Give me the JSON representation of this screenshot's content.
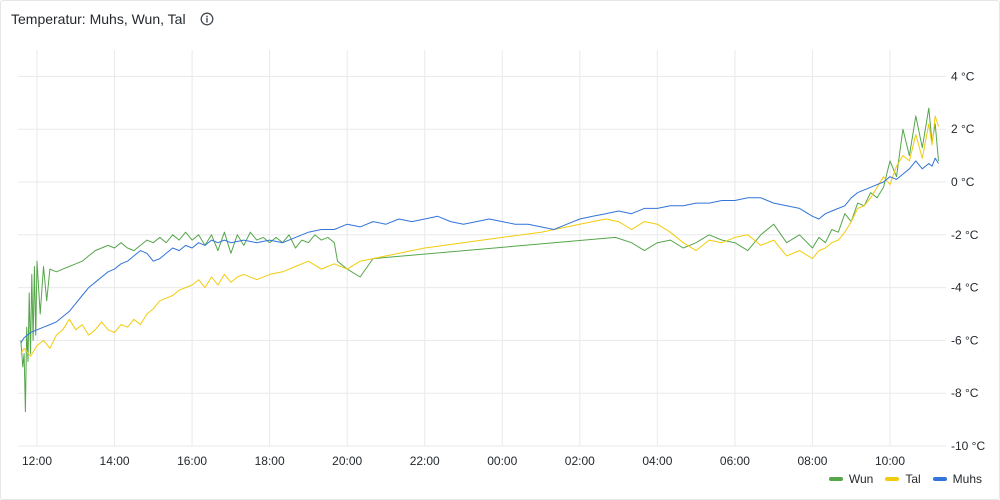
{
  "panel": {
    "title": "Temperatur: Muhs, Wun, Tal",
    "info_icon": "info-circle-icon"
  },
  "chart_data": {
    "type": "line",
    "title": "Temperatur: Muhs, Wun, Tal",
    "xlabel": "",
    "ylabel": "",
    "x_unit": "hours since 12:00 shown on time axis",
    "x_ticks": [
      "12:00",
      "14:00",
      "16:00",
      "18:00",
      "20:00",
      "22:00",
      "00:00",
      "02:00",
      "04:00",
      "06:00",
      "08:00",
      "10:00"
    ],
    "y_ticks": [
      "4 °C",
      "2 °C",
      "0 °C",
      "-2 °C",
      "-4 °C",
      "-6 °C",
      "-8 °C",
      "-10 °C"
    ],
    "ylim": [
      -10,
      5
    ],
    "grid": true,
    "legend_position": "bottom-right",
    "series": [
      {
        "name": "Wun",
        "color": "#56a64b",
        "points": [
          [
            "11:35",
            -6.0
          ],
          [
            "11:38",
            -7.0
          ],
          [
            "11:40",
            -6.5
          ],
          [
            "11:42",
            -8.7
          ],
          [
            "11:44",
            -5.5
          ],
          [
            "11:46",
            -6.8
          ],
          [
            "11:48",
            -4.2
          ],
          [
            "11:50",
            -6.5
          ],
          [
            "11:52",
            -3.5
          ],
          [
            "11:54",
            -6.0
          ],
          [
            "11:56",
            -3.2
          ],
          [
            "11:58",
            -5.8
          ],
          [
            "12:00",
            -3.0
          ],
          [
            "12:05",
            -5.0
          ],
          [
            "12:10",
            -3.2
          ],
          [
            "12:15",
            -4.5
          ],
          [
            "12:20",
            -3.3
          ],
          [
            "12:30",
            -3.4
          ],
          [
            "12:40",
            -3.3
          ],
          [
            "12:50",
            -3.2
          ],
          [
            "13:00",
            -3.1
          ],
          [
            "13:10",
            -3.0
          ],
          [
            "13:20",
            -2.8
          ],
          [
            "13:30",
            -2.6
          ],
          [
            "13:40",
            -2.5
          ],
          [
            "13:50",
            -2.4
          ],
          [
            "14:00",
            -2.5
          ],
          [
            "14:10",
            -2.3
          ],
          [
            "14:20",
            -2.5
          ],
          [
            "14:30",
            -2.6
          ],
          [
            "14:40",
            -2.4
          ],
          [
            "14:50",
            -2.2
          ],
          [
            "15:00",
            -2.3
          ],
          [
            "15:10",
            -2.1
          ],
          [
            "15:20",
            -2.3
          ],
          [
            "15:30",
            -2.0
          ],
          [
            "15:40",
            -2.2
          ],
          [
            "15:50",
            -1.9
          ],
          [
            "16:00",
            -2.2
          ],
          [
            "16:10",
            -2.0
          ],
          [
            "16:20",
            -2.4
          ],
          [
            "16:30",
            -2.0
          ],
          [
            "16:40",
            -2.6
          ],
          [
            "16:50",
            -1.9
          ],
          [
            "17:00",
            -2.7
          ],
          [
            "17:10",
            -2.0
          ],
          [
            "17:20",
            -2.4
          ],
          [
            "17:30",
            -1.9
          ],
          [
            "17:40",
            -2.2
          ],
          [
            "17:50",
            -2.1
          ],
          [
            "18:00",
            -2.3
          ],
          [
            "18:10",
            -2.1
          ],
          [
            "18:20",
            -2.3
          ],
          [
            "18:30",
            -2.0
          ],
          [
            "18:40",
            -2.5
          ],
          [
            "18:50",
            -2.2
          ],
          [
            "19:00",
            -2.3
          ],
          [
            "19:10",
            -2.0
          ],
          [
            "19:20",
            -2.2
          ],
          [
            "19:30",
            -2.1
          ],
          [
            "19:40",
            -2.3
          ],
          [
            "19:45",
            -3.0
          ],
          [
            "20:00",
            -3.3
          ],
          [
            "20:20",
            -3.6
          ],
          [
            "20:40",
            -2.9
          ],
          [
            "02:55",
            -2.1
          ],
          [
            "03:20",
            -2.3
          ],
          [
            "03:40",
            -2.6
          ],
          [
            "04:00",
            -2.3
          ],
          [
            "04:20",
            -2.2
          ],
          [
            "04:40",
            -2.5
          ],
          [
            "05:00",
            -2.3
          ],
          [
            "05:20",
            -2.0
          ],
          [
            "05:40",
            -2.2
          ],
          [
            "06:00",
            -2.3
          ],
          [
            "06:20",
            -2.6
          ],
          [
            "06:40",
            -2.0
          ],
          [
            "07:00",
            -1.6
          ],
          [
            "07:20",
            -2.3
          ],
          [
            "07:40",
            -2.0
          ],
          [
            "08:00",
            -2.5
          ],
          [
            "08:10",
            -2.1
          ],
          [
            "08:20",
            -2.3
          ],
          [
            "08:30",
            -1.8
          ],
          [
            "08:40",
            -1.9
          ],
          [
            "08:50",
            -1.2
          ],
          [
            "09:00",
            -1.5
          ],
          [
            "09:10",
            -0.8
          ],
          [
            "09:20",
            -0.9
          ],
          [
            "09:30",
            -0.4
          ],
          [
            "09:40",
            -0.6
          ],
          [
            "09:50",
            -0.2
          ],
          [
            "10:00",
            0.8
          ],
          [
            "10:10",
            0.2
          ],
          [
            "10:20",
            2.0
          ],
          [
            "10:30",
            1.0
          ],
          [
            "10:40",
            2.5
          ],
          [
            "10:50",
            1.3
          ],
          [
            "11:00",
            2.8
          ],
          [
            "11:05",
            1.5
          ],
          [
            "11:10",
            2.2
          ],
          [
            "11:15",
            0.8
          ]
        ]
      },
      {
        "name": "Tal",
        "color": "#f2cc0c",
        "points": [
          [
            "11:35",
            -6.5
          ],
          [
            "11:40",
            -6.3
          ],
          [
            "11:50",
            -6.6
          ],
          [
            "12:00",
            -6.2
          ],
          [
            "12:10",
            -6.0
          ],
          [
            "12:20",
            -6.3
          ],
          [
            "12:30",
            -5.8
          ],
          [
            "12:40",
            -5.6
          ],
          [
            "12:50",
            -5.2
          ],
          [
            "13:00",
            -5.6
          ],
          [
            "13:10",
            -5.4
          ],
          [
            "13:20",
            -5.8
          ],
          [
            "13:30",
            -5.6
          ],
          [
            "13:40",
            -5.3
          ],
          [
            "13:50",
            -5.6
          ],
          [
            "14:00",
            -5.7
          ],
          [
            "14:10",
            -5.4
          ],
          [
            "14:20",
            -5.5
          ],
          [
            "14:30",
            -5.2
          ],
          [
            "14:40",
            -5.4
          ],
          [
            "14:50",
            -5.0
          ],
          [
            "15:00",
            -4.8
          ],
          [
            "15:10",
            -4.5
          ],
          [
            "15:20",
            -4.4
          ],
          [
            "15:30",
            -4.3
          ],
          [
            "15:40",
            -4.1
          ],
          [
            "15:50",
            -4.0
          ],
          [
            "16:00",
            -3.9
          ],
          [
            "16:10",
            -3.7
          ],
          [
            "16:20",
            -4.0
          ],
          [
            "16:30",
            -3.6
          ],
          [
            "16:40",
            -3.9
          ],
          [
            "16:50",
            -3.5
          ],
          [
            "17:00",
            -3.8
          ],
          [
            "17:10",
            -3.6
          ],
          [
            "17:20",
            -3.5
          ],
          [
            "17:40",
            -3.7
          ],
          [
            "18:00",
            -3.5
          ],
          [
            "18:20",
            -3.4
          ],
          [
            "18:40",
            -3.2
          ],
          [
            "19:00",
            -3.0
          ],
          [
            "19:20",
            -3.3
          ],
          [
            "19:40",
            -3.1
          ],
          [
            "20:00",
            -3.3
          ],
          [
            "20:20",
            -3.0
          ],
          [
            "22:00",
            -2.5
          ],
          [
            "00:00",
            -2.1
          ],
          [
            "01:00",
            -1.9
          ],
          [
            "02:00",
            -1.6
          ],
          [
            "02:40",
            -1.4
          ],
          [
            "03:00",
            -1.5
          ],
          [
            "03:20",
            -1.8
          ],
          [
            "03:40",
            -1.5
          ],
          [
            "04:00",
            -1.6
          ],
          [
            "04:20",
            -1.9
          ],
          [
            "04:40",
            -2.3
          ],
          [
            "05:00",
            -2.6
          ],
          [
            "05:20",
            -2.2
          ],
          [
            "05:40",
            -2.3
          ],
          [
            "06:00",
            -2.1
          ],
          [
            "06:20",
            -2.0
          ],
          [
            "06:40",
            -2.4
          ],
          [
            "07:00",
            -2.2
          ],
          [
            "07:20",
            -2.8
          ],
          [
            "07:40",
            -2.6
          ],
          [
            "08:00",
            -2.9
          ],
          [
            "08:10",
            -2.6
          ],
          [
            "08:20",
            -2.5
          ],
          [
            "08:30",
            -2.3
          ],
          [
            "08:40",
            -2.2
          ],
          [
            "08:50",
            -1.9
          ],
          [
            "09:00",
            -1.5
          ],
          [
            "09:10",
            -1.0
          ],
          [
            "09:20",
            -0.9
          ],
          [
            "09:30",
            -0.6
          ],
          [
            "09:40",
            -0.2
          ],
          [
            "09:50",
            0.2
          ],
          [
            "10:00",
            -0.1
          ],
          [
            "10:10",
            0.6
          ],
          [
            "10:20",
            1.0
          ],
          [
            "10:30",
            0.8
          ],
          [
            "10:40",
            1.8
          ],
          [
            "10:50",
            0.9
          ],
          [
            "11:00",
            2.2
          ],
          [
            "11:05",
            1.4
          ],
          [
            "11:10",
            2.5
          ],
          [
            "11:15",
            2.1
          ]
        ]
      },
      {
        "name": "Muhs",
        "color": "#3274d9",
        "points": [
          [
            "11:35",
            -6.1
          ],
          [
            "11:40",
            -5.9
          ],
          [
            "11:50",
            -5.7
          ],
          [
            "12:00",
            -5.6
          ],
          [
            "12:10",
            -5.5
          ],
          [
            "12:20",
            -5.4
          ],
          [
            "12:30",
            -5.3
          ],
          [
            "12:40",
            -5.1
          ],
          [
            "12:50",
            -4.9
          ],
          [
            "13:00",
            -4.6
          ],
          [
            "13:10",
            -4.3
          ],
          [
            "13:20",
            -4.0
          ],
          [
            "13:30",
            -3.8
          ],
          [
            "13:40",
            -3.6
          ],
          [
            "13:50",
            -3.4
          ],
          [
            "14:00",
            -3.3
          ],
          [
            "14:10",
            -3.1
          ],
          [
            "14:20",
            -3.0
          ],
          [
            "14:30",
            -2.8
          ],
          [
            "14:40",
            -2.6
          ],
          [
            "14:50",
            -2.7
          ],
          [
            "15:00",
            -3.0
          ],
          [
            "15:10",
            -2.9
          ],
          [
            "15:20",
            -2.7
          ],
          [
            "15:30",
            -2.5
          ],
          [
            "15:40",
            -2.6
          ],
          [
            "15:50",
            -2.4
          ],
          [
            "16:00",
            -2.5
          ],
          [
            "16:10",
            -2.3
          ],
          [
            "16:20",
            -2.4
          ],
          [
            "16:30",
            -2.2
          ],
          [
            "16:40",
            -2.3
          ],
          [
            "16:50",
            -2.2
          ],
          [
            "17:00",
            -2.3
          ],
          [
            "17:20",
            -2.2
          ],
          [
            "17:40",
            -2.3
          ],
          [
            "18:00",
            -2.2
          ],
          [
            "18:20",
            -2.3
          ],
          [
            "18:40",
            -2.1
          ],
          [
            "19:00",
            -1.9
          ],
          [
            "19:20",
            -1.8
          ],
          [
            "19:40",
            -1.8
          ],
          [
            "20:00",
            -1.6
          ],
          [
            "20:20",
            -1.7
          ],
          [
            "20:40",
            -1.5
          ],
          [
            "21:00",
            -1.6
          ],
          [
            "21:20",
            -1.4
          ],
          [
            "21:40",
            -1.5
          ],
          [
            "22:00",
            -1.4
          ],
          [
            "22:20",
            -1.3
          ],
          [
            "22:40",
            -1.5
          ],
          [
            "23:00",
            -1.6
          ],
          [
            "23:20",
            -1.5
          ],
          [
            "23:40",
            -1.4
          ],
          [
            "00:00",
            -1.5
          ],
          [
            "00:20",
            -1.6
          ],
          [
            "00:40",
            -1.6
          ],
          [
            "01:00",
            -1.7
          ],
          [
            "01:20",
            -1.8
          ],
          [
            "01:40",
            -1.6
          ],
          [
            "02:00",
            -1.4
          ],
          [
            "02:20",
            -1.3
          ],
          [
            "02:40",
            -1.2
          ],
          [
            "03:00",
            -1.1
          ],
          [
            "03:20",
            -1.2
          ],
          [
            "03:40",
            -1.0
          ],
          [
            "04:00",
            -1.0
          ],
          [
            "04:20",
            -0.9
          ],
          [
            "04:40",
            -0.9
          ],
          [
            "05:00",
            -0.8
          ],
          [
            "05:20",
            -0.8
          ],
          [
            "05:40",
            -0.7
          ],
          [
            "06:00",
            -0.7
          ],
          [
            "06:20",
            -0.6
          ],
          [
            "06:40",
            -0.6
          ],
          [
            "07:00",
            -0.8
          ],
          [
            "07:20",
            -0.9
          ],
          [
            "07:40",
            -1.0
          ],
          [
            "08:00",
            -1.3
          ],
          [
            "08:10",
            -1.4
          ],
          [
            "08:20",
            -1.2
          ],
          [
            "08:30",
            -1.1
          ],
          [
            "08:40",
            -1.0
          ],
          [
            "08:50",
            -0.9
          ],
          [
            "09:00",
            -0.6
          ],
          [
            "09:10",
            -0.4
          ],
          [
            "09:20",
            -0.3
          ],
          [
            "09:30",
            -0.2
          ],
          [
            "09:40",
            -0.1
          ],
          [
            "09:50",
            0.0
          ],
          [
            "10:00",
            0.2
          ],
          [
            "10:10",
            0.1
          ],
          [
            "10:20",
            0.3
          ],
          [
            "10:30",
            0.5
          ],
          [
            "10:40",
            0.8
          ],
          [
            "10:50",
            0.5
          ],
          [
            "11:00",
            0.7
          ],
          [
            "11:05",
            0.6
          ],
          [
            "11:10",
            0.9
          ],
          [
            "11:15",
            0.7
          ]
        ]
      }
    ]
  },
  "legend": {
    "items": [
      {
        "label": "Wun",
        "color": "#56a64b"
      },
      {
        "label": "Tal",
        "color": "#f2cc0c"
      },
      {
        "label": "Muhs",
        "color": "#3274d9"
      }
    ]
  }
}
